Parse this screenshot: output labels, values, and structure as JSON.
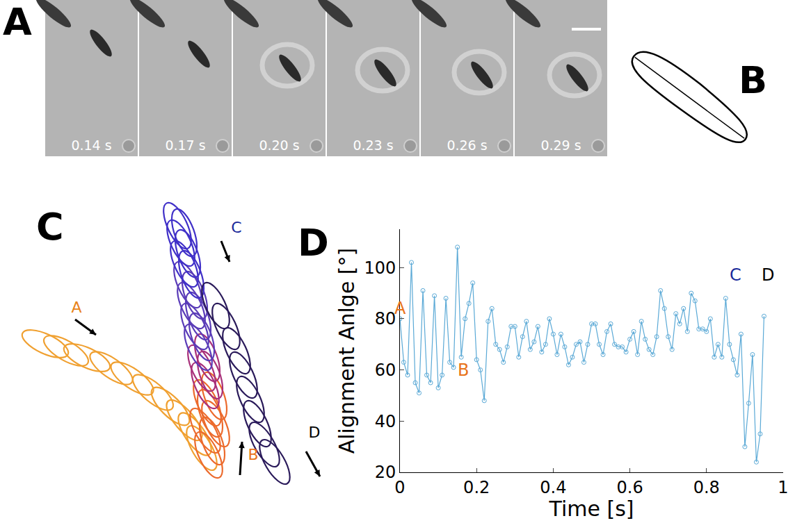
{
  "panel_a": {
    "letter": "A",
    "frames": [
      "0.14 s",
      "0.17 s",
      "0.20 s",
      "0.23 s",
      "0.26 s",
      "0.29 s"
    ]
  },
  "panel_b": {
    "letter": "B"
  },
  "panel_c": {
    "letter": "C",
    "xlim": [
      0,
      440
    ],
    "ylim": [
      0,
      410
    ],
    "tracks": [
      {
        "color": "#f0a030",
        "ellipses": [
          [
            25,
            205,
            25
          ],
          [
            55,
            215,
            30
          ],
          [
            85,
            225,
            25
          ],
          [
            120,
            240,
            35
          ],
          [
            150,
            255,
            35
          ],
          [
            180,
            275,
            40
          ],
          [
            205,
            295,
            45
          ],
          [
            225,
            315,
            50
          ],
          [
            240,
            335,
            55
          ],
          [
            250,
            355,
            60
          ]
        ]
      },
      {
        "color": "#ec6a2c",
        "ellipses": [
          [
            260,
            365,
            65
          ],
          [
            265,
            345,
            70
          ],
          [
            255,
            330,
            60
          ],
          [
            270,
            320,
            65
          ],
          [
            262,
            305,
            70
          ],
          [
            258,
            290,
            65
          ],
          [
            268,
            280,
            70
          ]
        ]
      },
      {
        "color": "#a8307a",
        "ellipses": [
          [
            255,
            265,
            65
          ],
          [
            262,
            250,
            70
          ],
          [
            250,
            240,
            65
          ],
          [
            258,
            225,
            70
          ]
        ]
      },
      {
        "color": "#5a3cb8",
        "ellipses": [
          [
            245,
            210,
            65
          ],
          [
            250,
            195,
            70
          ],
          [
            240,
            180,
            65
          ],
          [
            245,
            165,
            70
          ],
          [
            235,
            150,
            65
          ],
          [
            240,
            135,
            70
          ],
          [
            230,
            120,
            65
          ]
        ]
      },
      {
        "color": "#4030c8",
        "ellipses": [
          [
            235,
            105,
            70
          ],
          [
            225,
            90,
            65
          ],
          [
            230,
            75,
            70
          ],
          [
            220,
            60,
            65
          ],
          [
            225,
            45,
            70
          ],
          [
            215,
            35,
            65
          ]
        ]
      },
      {
        "color": "#2a1a5a",
        "ellipses": [
          [
            270,
            150,
            65
          ],
          [
            285,
            180,
            65
          ],
          [
            300,
            215,
            65
          ],
          [
            310,
            250,
            65
          ],
          [
            320,
            285,
            65
          ],
          [
            330,
            320,
            65
          ],
          [
            340,
            350,
            60
          ],
          [
            355,
            375,
            60
          ]
        ]
      }
    ],
    "labels": [
      {
        "text": "A",
        "x": 70,
        "y": 160,
        "color": "#e8831a"
      },
      {
        "text": "B",
        "x": 324,
        "y": 372,
        "color": "#e8731a"
      },
      {
        "text": "C",
        "x": 300,
        "y": 45,
        "color": "#1a2a9a"
      },
      {
        "text": "D",
        "x": 412,
        "y": 340,
        "color": "#000000"
      }
    ]
  },
  "chart_data": {
    "type": "line",
    "letter": "D",
    "x_label": "Time [s]",
    "y_label": "Alignment Anlge [°]",
    "x": [
      0,
      0.01,
      0.02,
      0.03,
      0.04,
      0.05,
      0.06,
      0.07,
      0.08,
      0.09,
      0.1,
      0.11,
      0.12,
      0.13,
      0.14,
      0.15,
      0.16,
      0.17,
      0.18,
      0.19,
      0.2,
      0.21,
      0.22,
      0.23,
      0.24,
      0.25,
      0.26,
      0.27,
      0.28,
      0.29,
      0.3,
      0.31,
      0.32,
      0.33,
      0.34,
      0.35,
      0.36,
      0.37,
      0.38,
      0.39,
      0.4,
      0.41,
      0.42,
      0.43,
      0.44,
      0.45,
      0.46,
      0.47,
      0.48,
      0.49,
      0.5,
      0.51,
      0.52,
      0.53,
      0.54,
      0.55,
      0.56,
      0.57,
      0.58,
      0.59,
      0.6,
      0.61,
      0.62,
      0.63,
      0.64,
      0.65,
      0.66,
      0.67,
      0.68,
      0.69,
      0.7,
      0.71,
      0.72,
      0.73,
      0.74,
      0.75,
      0.76,
      0.77,
      0.78,
      0.79,
      0.8,
      0.81,
      0.82,
      0.83,
      0.84,
      0.85,
      0.86,
      0.87,
      0.88,
      0.89,
      0.9,
      0.91,
      0.92,
      0.93,
      0.94,
      0.95
    ],
    "values": [
      80,
      63,
      58,
      102,
      55,
      51,
      91,
      58,
      55,
      89,
      53,
      58,
      88,
      63,
      61,
      108,
      65,
      80,
      86,
      94,
      64,
      60,
      48,
      79,
      84,
      70,
      68,
      63,
      69,
      77,
      77,
      65,
      73,
      79,
      68,
      71,
      77,
      67,
      70,
      80,
      74,
      66,
      74,
      69,
      62,
      65,
      70,
      71,
      63,
      70,
      78,
      78,
      70,
      66,
      75,
      78,
      70,
      69,
      69,
      67,
      72,
      75,
      66,
      79,
      72,
      68,
      66,
      73,
      91,
      84,
      73,
      68,
      82,
      78,
      84,
      75,
      90,
      87,
      76,
      76,
      75,
      80,
      65,
      70,
      65,
      88,
      70,
      64,
      58,
      74,
      30,
      47,
      66,
      24,
      35,
      81
    ],
    "color": "#5aa9d6",
    "marker": "circle-open",
    "xlim": [
      0,
      1
    ],
    "ylim": [
      20,
      115
    ],
    "xticks": [
      0,
      0.2,
      0.4,
      0.6,
      0.8,
      1
    ],
    "yticks": [
      20,
      40,
      60,
      80,
      100
    ],
    "grid": false,
    "annotations": [
      {
        "text": "A",
        "x": 0,
        "y": 84,
        "color": "#e8731a"
      },
      {
        "text": "B",
        "x": 0.165,
        "y": 60,
        "color": "#e8731a"
      },
      {
        "text": "C",
        "x": 0.875,
        "y": 97,
        "color": "#1a2a9a"
      },
      {
        "text": "D",
        "x": 0.96,
        "y": 97,
        "color": "#000000"
      }
    ]
  }
}
